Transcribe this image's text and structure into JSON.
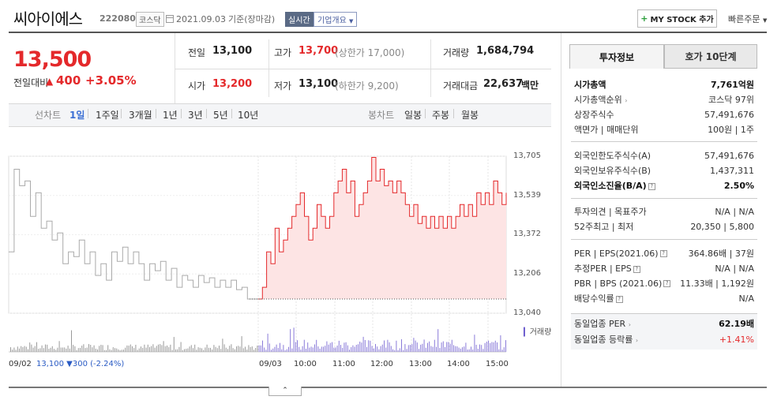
{
  "header": {
    "name": "씨아이에스",
    "code": "222080",
    "market": "코스닥",
    "date": "2021.09.03",
    "basis": "기준(장마감)",
    "realtime": "실시간",
    "company_info": "기업개요",
    "mystock_label": "MY STOCK 추가",
    "quick_order": "빠른주문"
  },
  "price": {
    "current": "13,500",
    "change_label": "전일대비",
    "change_value": "400",
    "change_pct": "+3.05%"
  },
  "stats": {
    "prev_label": "전일",
    "prev_value": "13,100",
    "high_label": "고가",
    "high_value": "13,700",
    "high_limit": "(상한가 17,000)",
    "volume_label": "거래량",
    "volume_value": "1,684,794",
    "open_label": "시가",
    "open_value": "13,200",
    "low_label": "저가",
    "low_value": "13,100",
    "low_limit": "(하한가 9,200)",
    "amount_label": "거래대금",
    "amount_value": "22,637",
    "amount_unit": "백만"
  },
  "toolbar": {
    "line_label": "선차트",
    "line_periods": [
      "1일",
      "1주일",
      "3개월",
      "1년",
      "3년",
      "5년",
      "10년"
    ],
    "candle_label": "봉차트",
    "candle_periods": [
      "일봉",
      "주봉",
      "월봉"
    ]
  },
  "chart": {
    "y_ticks": [
      "13,705",
      "13,539",
      "13,372",
      "13,206",
      "13,040"
    ],
    "x_labels": [
      "09/02",
      "09/03",
      "10:00",
      "11:00",
      "12:00",
      "13:00",
      "14:00",
      "15:00"
    ],
    "prev_day_info": "13,100 ▼300 (-2.24%)",
    "volume_legend": "거래량",
    "ref_price": 13100,
    "y_min": 13040,
    "y_max": 13705,
    "prev_day_prices": [
      13300,
      13650,
      13580,
      13600,
      13450,
      13550,
      13400,
      13430,
      13350,
      13380,
      13250,
      13300,
      13280,
      13350,
      13250,
      13300,
      13200,
      13250,
      13180,
      13300,
      13260,
      13320,
      13250,
      13300,
      13250,
      13180,
      13250,
      13220,
      13260,
      13180,
      13230,
      13150,
      13200,
      13180,
      13150,
      13200,
      13170,
      13190,
      13150,
      13180,
      13150,
      13180,
      13140,
      13150,
      13100,
      13100,
      13100
    ],
    "today_prices": [
      13100,
      13150,
      13300,
      13250,
      13400,
      13300,
      13350,
      13400,
      13450,
      13500,
      13550,
      13450,
      13350,
      13400,
      13500,
      13450,
      13400,
      13450,
      13550,
      13600,
      13650,
      13550,
      13600,
      13450,
      13500,
      13550,
      13600,
      13700,
      13600,
      13650,
      13580,
      13600,
      13550,
      13600,
      13550,
      13500,
      13450,
      13500,
      13420,
      13450,
      13400,
      13450,
      13400,
      13450,
      13400,
      13450,
      13400,
      13450,
      13500,
      13450,
      13500,
      13450,
      13550,
      13500,
      13550,
      13500,
      13600,
      13550,
      13500,
      13550
    ]
  },
  "panel": {
    "tab_active": "투자정보",
    "tab_inactive": "호가 10단계",
    "market_cap_label": "시가총액",
    "market_cap_value": "7,761억원",
    "market_cap_rank_label": "시가총액순위",
    "market_cap_rank_value": "코스닥 97위",
    "shares_label": "상장주식수",
    "shares_value": "57,491,676",
    "par_label": "액면가 | 매매단위",
    "par_value": "100원 | 1주",
    "foreign_limit_label": "외국인한도주식수(A)",
    "foreign_limit_value": "57,491,676",
    "foreign_hold_label": "외국인보유주식수(B)",
    "foreign_hold_value": "1,437,311",
    "foreign_ratio_label": "외국인소진율(B/A)",
    "foreign_ratio_value": "2.50%",
    "opinion_label": "투자의견 | 목표주가",
    "opinion_value": "N/A | N/A",
    "week52_label": "52주최고 | 최저",
    "week52_value": "20,350 | 5,800",
    "per_label": "PER | EPS(2021.06)",
    "per_value": "364.86배 | 37원",
    "est_per_label": "추정PER | EPS",
    "est_per_value": "N/A | N/A",
    "pbr_label": "PBR | BPS (2021.06)",
    "pbr_value": "11.33배 | 1,192원",
    "dividend_label": "배당수익률",
    "dividend_value": "N/A",
    "sector_per_label": "동일업종 PER",
    "sector_per_value": "62.19배",
    "sector_change_label": "동일업종 등락률",
    "sector_change_value": "+1.41%"
  },
  "colors": {
    "up": "#e4292b",
    "down": "#2a5bc4",
    "accent": "#3b6fd4"
  }
}
